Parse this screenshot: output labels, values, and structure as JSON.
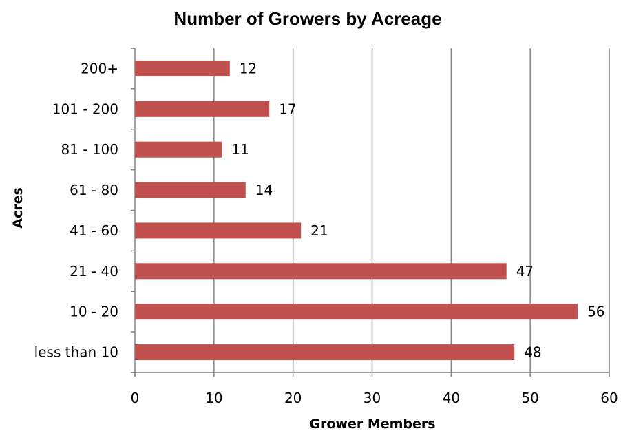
{
  "chart_data": {
    "type": "bar",
    "orientation": "horizontal",
    "title": "Number of Growers by Acreage",
    "xlabel": "Grower Members",
    "ylabel": "Acres",
    "categories": [
      "200+",
      "101 - 200",
      "81 - 100",
      "61 - 80",
      "41 - 60",
      "21 - 40",
      "10 - 20",
      "less than 10"
    ],
    "values": [
      12,
      17,
      11,
      14,
      21,
      47,
      56,
      48
    ],
    "data_labels": [
      "12",
      "17",
      "11",
      "14",
      "21",
      "47",
      "56",
      "48"
    ],
    "xlim": [
      0,
      60
    ],
    "xticks": [
      0,
      10,
      20,
      30,
      40,
      50,
      60
    ],
    "xtick_labels": [
      "0",
      "10",
      "20",
      "30",
      "40",
      "50",
      "60"
    ],
    "grid": "vertical",
    "legend": "none",
    "bar_color": "#C0504D",
    "grid_color": "#868686"
  }
}
